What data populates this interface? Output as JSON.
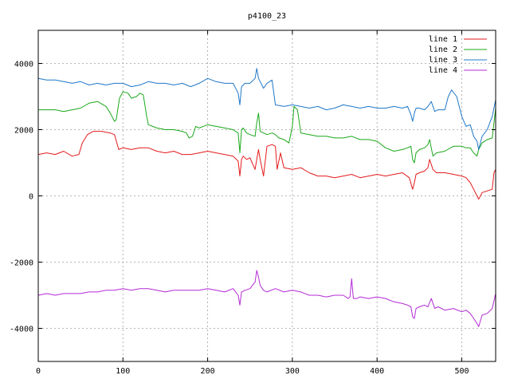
{
  "chart_data": {
    "type": "line",
    "title": "p4100_23",
    "xlabel": "",
    "ylabel": "",
    "xlim": [
      0,
      540
    ],
    "ylim": [
      -5000,
      5000
    ],
    "xticks": [
      0,
      100,
      200,
      300,
      400,
      500
    ],
    "yticks": [
      -4000,
      -2000,
      0,
      2000,
      4000
    ],
    "grid": true,
    "legend_position": "top-right",
    "colors": {
      "line 1": "#e41a1c",
      "line 2": "#1ba81b",
      "line 3": "#1f78c8",
      "line 4": "#b42bd6"
    },
    "series": [
      {
        "name": "line 1",
        "x": [
          0,
          10,
          20,
          30,
          40,
          48,
          52,
          58,
          65,
          75,
          85,
          90,
          95,
          100,
          110,
          120,
          130,
          140,
          150,
          160,
          170,
          180,
          190,
          200,
          210,
          220,
          230,
          236,
          238,
          240,
          242,
          246,
          250,
          256,
          258,
          260,
          262,
          266,
          270,
          276,
          280,
          282,
          286,
          290,
          300,
          310,
          320,
          330,
          340,
          350,
          360,
          370,
          380,
          390,
          400,
          410,
          420,
          430,
          438,
          442,
          444,
          446,
          450,
          456,
          460,
          462,
          466,
          470,
          480,
          490,
          500,
          505,
          510,
          514,
          518,
          520,
          524,
          530,
          536,
          538,
          540
        ],
        "y": [
          1250,
          1300,
          1250,
          1350,
          1200,
          1250,
          1600,
          1850,
          1950,
          1950,
          1900,
          1850,
          1400,
          1450,
          1400,
          1450,
          1450,
          1350,
          1300,
          1350,
          1250,
          1250,
          1300,
          1350,
          1300,
          1250,
          1200,
          1050,
          600,
          1100,
          1200,
          1100,
          1150,
          800,
          1100,
          1400,
          1100,
          600,
          1500,
          1550,
          1500,
          800,
          1300,
          850,
          800,
          850,
          700,
          600,
          600,
          550,
          600,
          650,
          550,
          600,
          650,
          600,
          650,
          700,
          550,
          200,
          400,
          650,
          700,
          750,
          850,
          1100,
          800,
          700,
          700,
          650,
          600,
          550,
          400,
          200,
          0,
          -100,
          100,
          150,
          200,
          700,
          800
        ]
      },
      {
        "name": "line 2",
        "x": [
          0,
          10,
          20,
          30,
          40,
          50,
          60,
          70,
          80,
          85,
          90,
          92,
          96,
          100,
          106,
          110,
          116,
          120,
          124,
          128,
          130,
          140,
          150,
          160,
          170,
          175,
          178,
          182,
          186,
          190,
          200,
          210,
          220,
          230,
          236,
          238,
          240,
          242,
          246,
          250,
          256,
          258,
          260,
          262,
          266,
          270,
          276,
          280,
          284,
          290,
          296,
          300,
          302,
          306,
          310,
          320,
          330,
          340,
          350,
          360,
          370,
          380,
          390,
          400,
          410,
          420,
          430,
          436,
          440,
          442,
          444,
          446,
          450,
          456,
          460,
          462,
          466,
          470,
          480,
          490,
          500,
          505,
          510,
          514,
          518,
          520,
          524,
          530,
          536,
          540
        ],
        "y": [
          2600,
          2600,
          2600,
          2550,
          2600,
          2650,
          2800,
          2850,
          2700,
          2500,
          2250,
          2300,
          2950,
          3150,
          3100,
          2950,
          3000,
          3100,
          3050,
          2400,
          2150,
          2050,
          2000,
          2000,
          1950,
          1900,
          1750,
          1800,
          2100,
          2050,
          2150,
          2100,
          2050,
          2000,
          1900,
          1300,
          2000,
          2050,
          1900,
          1850,
          1800,
          2200,
          2500,
          1950,
          1900,
          1850,
          1900,
          1850,
          1750,
          1700,
          1600,
          2100,
          2700,
          2600,
          1900,
          1850,
          1800,
          1800,
          1750,
          1750,
          1800,
          1700,
          1700,
          1650,
          1450,
          1350,
          1400,
          1450,
          1500,
          1100,
          1000,
          1300,
          1400,
          1450,
          1550,
          1700,
          1200,
          1300,
          1350,
          1500,
          1500,
          1450,
          1450,
          1300,
          1200,
          1400,
          1600,
          1700,
          1750,
          2650
        ]
      },
      {
        "name": "line 3",
        "x": [
          0,
          10,
          20,
          30,
          40,
          50,
          60,
          70,
          80,
          90,
          100,
          110,
          120,
          130,
          140,
          150,
          160,
          170,
          180,
          190,
          200,
          205,
          210,
          220,
          230,
          236,
          238,
          240,
          244,
          250,
          256,
          258,
          260,
          262,
          266,
          270,
          276,
          280,
          290,
          300,
          310,
          320,
          330,
          340,
          350,
          360,
          370,
          380,
          390,
          400,
          410,
          420,
          430,
          436,
          440,
          442,
          444,
          446,
          450,
          456,
          460,
          464,
          468,
          472,
          480,
          484,
          488,
          494,
          500,
          505,
          510,
          514,
          518,
          520,
          524,
          530,
          536,
          540
        ],
        "y": [
          3550,
          3500,
          3500,
          3450,
          3400,
          3450,
          3350,
          3400,
          3350,
          3400,
          3400,
          3300,
          3350,
          3450,
          3400,
          3400,
          3350,
          3400,
          3300,
          3400,
          3550,
          3500,
          3450,
          3400,
          3400,
          3100,
          2750,
          3300,
          3400,
          3400,
          3550,
          3850,
          3550,
          3450,
          3250,
          3400,
          3500,
          2750,
          2700,
          2750,
          2700,
          2650,
          2700,
          2600,
          2650,
          2750,
          2700,
          2650,
          2700,
          2650,
          2650,
          2700,
          2650,
          2700,
          2450,
          2250,
          2500,
          2650,
          2650,
          2600,
          2700,
          2850,
          2550,
          2600,
          2600,
          3000,
          3200,
          3000,
          2400,
          2100,
          2150,
          1800,
          1650,
          1400,
          1800,
          2000,
          2400,
          2900
        ]
      },
      {
        "name": "line 4",
        "x": [
          0,
          10,
          20,
          30,
          40,
          50,
          60,
          70,
          80,
          90,
          100,
          110,
          120,
          130,
          140,
          150,
          160,
          170,
          180,
          190,
          200,
          210,
          220,
          230,
          236,
          238,
          240,
          244,
          250,
          256,
          258,
          260,
          262,
          266,
          270,
          280,
          290,
          300,
          310,
          320,
          330,
          340,
          350,
          360,
          366,
          368,
          370,
          372,
          376,
          380,
          390,
          400,
          410,
          420,
          430,
          436,
          440,
          442,
          444,
          446,
          450,
          456,
          460,
          464,
          468,
          472,
          480,
          490,
          500,
          505,
          510,
          514,
          518,
          520,
          524,
          530,
          536,
          540
        ],
        "y": [
          -3000,
          -2950,
          -3000,
          -2950,
          -2950,
          -2950,
          -2900,
          -2900,
          -2850,
          -2850,
          -2800,
          -2850,
          -2800,
          -2800,
          -2850,
          -2900,
          -2850,
          -2850,
          -2850,
          -2850,
          -2800,
          -2850,
          -2900,
          -2800,
          -3000,
          -3300,
          -2900,
          -2850,
          -2800,
          -2600,
          -2250,
          -2450,
          -2700,
          -2850,
          -2900,
          -2800,
          -2900,
          -2850,
          -2900,
          -3000,
          -3000,
          -3050,
          -3000,
          -3000,
          -3100,
          -3050,
          -2500,
          -3100,
          -3100,
          -3050,
          -3100,
          -3050,
          -3100,
          -3200,
          -3250,
          -3300,
          -3350,
          -3650,
          -3700,
          -3400,
          -3350,
          -3300,
          -3350,
          -3100,
          -3400,
          -3350,
          -3450,
          -3400,
          -3500,
          -3450,
          -3550,
          -3700,
          -3850,
          -3950,
          -3600,
          -3550,
          -3400,
          -2950
        ]
      }
    ]
  }
}
